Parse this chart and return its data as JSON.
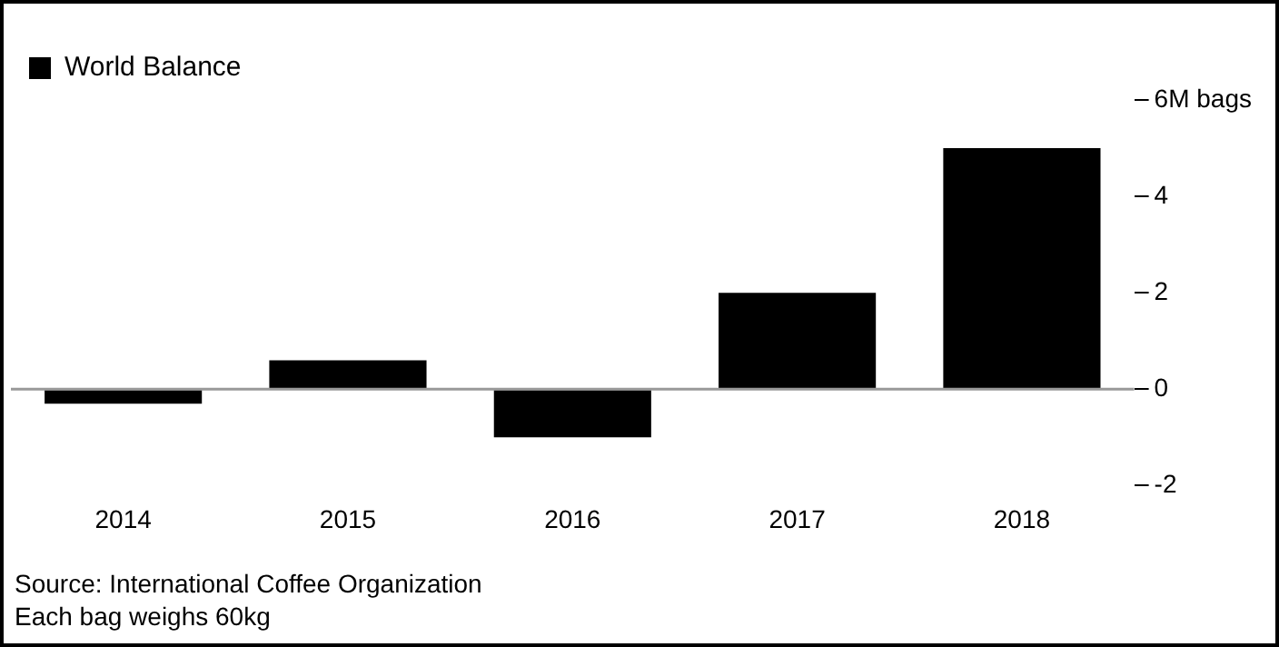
{
  "chart_data": {
    "type": "bar",
    "categories": [
      "2014",
      "2015",
      "2016",
      "2017",
      "2018"
    ],
    "series": [
      {
        "name": "World Balance",
        "color": "#000000",
        "values": [
          -0.3,
          0.6,
          -1.0,
          2.0,
          5.0
        ]
      }
    ],
    "ylim": [
      -2,
      6
    ],
    "yticks": [
      {
        "value": 6,
        "label": "6M bags"
      },
      4,
      2,
      0,
      -2
    ],
    "ref_lines": [
      {
        "axis": "y",
        "value": 0,
        "color": "#999999"
      }
    ],
    "legend": "top left",
    "grid": false,
    "annotations": [
      "Source: International Coffee Organization",
      "Each bag weighs 60kg"
    ]
  }
}
